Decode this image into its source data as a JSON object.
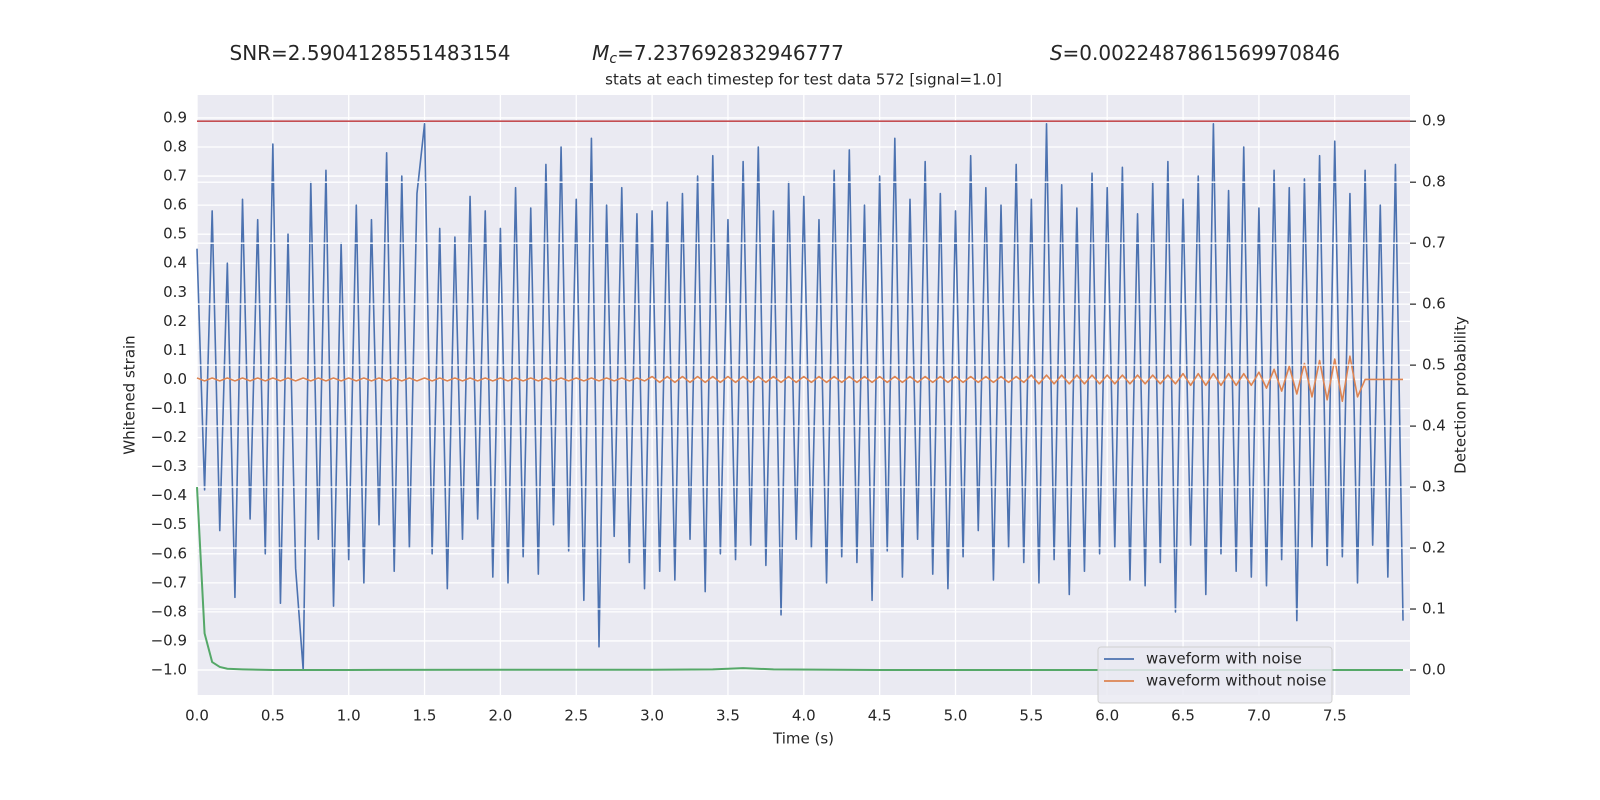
{
  "chart_data": {
    "type": "line",
    "annotations": [
      {
        "text": "SNR=2.5904128551483154"
      },
      {
        "symbol": "M",
        "subscript": "c",
        "text": "=7.237692832946777"
      },
      {
        "symbol": "S",
        "text": "=0.0022487861569970846"
      }
    ],
    "title": "stats at each timestep for test data 572 [signal=1.0]",
    "x_label": "Time (s)",
    "y_label": "Whitened strain",
    "y2_label": "Detection probability",
    "xlim": [
      0,
      7.996
    ],
    "ylim": [
      -1.086,
      0.979
    ],
    "y2lim": [
      -0.041,
      0.943
    ],
    "xticks": [
      {
        "value": 0,
        "label": "0.0"
      },
      0.5,
      {
        "value": 1,
        "label": "1.0"
      },
      1.5,
      {
        "value": 2,
        "label": "2.0"
      },
      2.5,
      {
        "value": 3,
        "label": "3.0"
      },
      3.5,
      {
        "value": 4,
        "label": "4.0"
      },
      4.5,
      {
        "value": 5,
        "label": "5.0"
      },
      5.5,
      {
        "value": 6,
        "label": "6.0"
      },
      6.5,
      {
        "value": 7,
        "label": "7.0"
      },
      7.5
    ],
    "yticks": [
      {
        "value": -1,
        "label": "−1.0"
      },
      {
        "value": -0.9,
        "label": "−0.9"
      },
      {
        "value": -0.8,
        "label": "−0.8"
      },
      {
        "value": -0.7,
        "label": "−0.7"
      },
      {
        "value": -0.6,
        "label": "−0.6"
      },
      {
        "value": -0.5,
        "label": "−0.5"
      },
      {
        "value": -0.4,
        "label": "−0.4"
      },
      {
        "value": -0.3,
        "label": "−0.3"
      },
      {
        "value": -0.2,
        "label": "−0.2"
      },
      {
        "value": -0.1,
        "label": "−0.1"
      },
      {
        "value": 0,
        "label": "0.0"
      },
      0.1,
      0.2,
      0.3,
      0.4,
      0.5,
      0.6,
      0.7,
      0.8,
      0.9
    ],
    "y2ticks": [
      {
        "value": 0,
        "label": "0.0"
      },
      0.1,
      0.2,
      0.3,
      0.4,
      0.5,
      0.6,
      0.7,
      0.8,
      0.9
    ],
    "grid": true,
    "legend": "lower right",
    "hline": {
      "value": 0.9,
      "axis": "y2",
      "color": "#c44e52"
    },
    "x": [
      0,
      0.05,
      0.1,
      0.15,
      0.2,
      0.25,
      0.3,
      0.35,
      0.4,
      0.45,
      0.5,
      0.55,
      0.6,
      0.65,
      0.7,
      0.75,
      0.8,
      0.85,
      0.9,
      0.95,
      1,
      1.05,
      1.1,
      1.15,
      1.2,
      1.25,
      1.3,
      1.35,
      1.4,
      1.45,
      1.5,
      1.55,
      1.6,
      1.65,
      1.7,
      1.75,
      1.8,
      1.85,
      1.9,
      1.95,
      2,
      2.05,
      2.1,
      2.15,
      2.2,
      2.25,
      2.3,
      2.35,
      2.4,
      2.45,
      2.5,
      2.55,
      2.6,
      2.65,
      2.7,
      2.75,
      2.8,
      2.85,
      2.9,
      2.95,
      3,
      3.05,
      3.1,
      3.15,
      3.2,
      3.25,
      3.3,
      3.35,
      3.4,
      3.45,
      3.5,
      3.55,
      3.6,
      3.65,
      3.7,
      3.75,
      3.8,
      3.85,
      3.9,
      3.95,
      4,
      4.05,
      4.1,
      4.15,
      4.2,
      4.25,
      4.3,
      4.35,
      4.4,
      4.45,
      4.5,
      4.55,
      4.6,
      4.65,
      4.7,
      4.75,
      4.8,
      4.85,
      4.9,
      4.95,
      5,
      5.05,
      5.1,
      5.15,
      5.2,
      5.25,
      5.3,
      5.35,
      5.4,
      5.45,
      5.5,
      5.55,
      5.6,
      5.65,
      5.7,
      5.75,
      5.8,
      5.85,
      5.9,
      5.95,
      6,
      6.05,
      6.1,
      6.15,
      6.2,
      6.25,
      6.3,
      6.35,
      6.4,
      6.45,
      6.5,
      6.55,
      6.6,
      6.65,
      6.7,
      6.75,
      6.8,
      6.85,
      6.9,
      6.95,
      7,
      7.05,
      7.1,
      7.15,
      7.2,
      7.25,
      7.3,
      7.35,
      7.4,
      7.45,
      7.5,
      7.55,
      7.6,
      7.65,
      7.7,
      7.75,
      7.8,
      7.85,
      7.9,
      7.95
    ],
    "series": [
      {
        "name": "waveform with noise",
        "color": "#4c72b0",
        "values": [
          0.45,
          -0.38,
          0.58,
          -0.52,
          0.4,
          -0.75,
          0.62,
          -0.48,
          0.55,
          -0.6,
          0.81,
          -0.77,
          0.5,
          -0.65,
          -1.0,
          0.68,
          -0.55,
          0.72,
          -0.78,
          0.47,
          -0.62,
          0.6,
          -0.7,
          0.55,
          -0.5,
          0.78,
          -0.66,
          0.7,
          -0.58,
          0.64,
          0.88,
          -0.6,
          0.52,
          -0.72,
          0.49,
          -0.55,
          0.63,
          -0.48,
          0.58,
          -0.68,
          0.52,
          -0.7,
          0.66,
          -0.61,
          0.59,
          -0.67,
          0.74,
          -0.5,
          0.8,
          -0.59,
          0.62,
          -0.76,
          0.83,
          -0.92,
          0.6,
          -0.54,
          0.66,
          -0.63,
          0.57,
          -0.72,
          0.58,
          -0.66,
          0.61,
          -0.69,
          0.64,
          -0.55,
          0.7,
          -0.73,
          0.77,
          -0.6,
          0.55,
          -0.62,
          0.75,
          -0.57,
          0.8,
          -0.64,
          0.58,
          -0.81,
          0.68,
          -0.55,
          0.63,
          -0.58,
          0.55,
          -0.7,
          0.72,
          -0.61,
          0.79,
          -0.63,
          0.6,
          -0.76,
          0.7,
          -0.59,
          0.83,
          -0.68,
          0.62,
          -0.55,
          0.75,
          -0.67,
          0.64,
          -0.72,
          0.58,
          -0.61,
          0.77,
          -0.52,
          0.66,
          -0.69,
          0.6,
          -0.58,
          0.74,
          -0.63,
          0.62,
          -0.7,
          0.88,
          -0.62,
          0.67,
          -0.74,
          0.59,
          -0.66,
          0.71,
          -0.6,
          0.66,
          -0.58,
          0.73,
          -0.69,
          0.57,
          -0.71,
          0.68,
          -0.63,
          0.75,
          -0.8,
          0.62,
          -0.57,
          0.7,
          -0.74,
          0.88,
          -0.6,
          0.65,
          -0.66,
          0.8,
          -0.68,
          0.59,
          -0.71,
          0.72,
          -0.62,
          0.66,
          -0.83,
          0.69,
          -0.58,
          0.77,
          -0.64,
          0.82,
          -0.61,
          0.64,
          -0.7,
          0.72,
          -0.57,
          0.6,
          -0.68,
          0.74,
          -0.83
        ]
      },
      {
        "name": "waveform without noise",
        "color": "#dd8452",
        "values": [
          0.005,
          -0.005,
          0.005,
          -0.005,
          0.005,
          -0.005,
          0.005,
          -0.005,
          0.005,
          -0.005,
          0.005,
          -0.005,
          0.005,
          -0.005,
          0.005,
          -0.005,
          0.005,
          -0.005,
          0.005,
          -0.005,
          0.005,
          -0.005,
          0.005,
          -0.005,
          0.005,
          -0.005,
          0.005,
          -0.005,
          0.005,
          -0.005,
          0.005,
          -0.005,
          0.005,
          -0.005,
          0.005,
          -0.005,
          0.005,
          -0.005,
          0.005,
          -0.005,
          0.005,
          -0.005,
          0.005,
          -0.005,
          0.005,
          -0.005,
          0.005,
          -0.005,
          0.005,
          -0.005,
          0.005,
          -0.005,
          0.005,
          -0.005,
          0.005,
          -0.005,
          0.005,
          -0.005,
          0.005,
          -0.005,
          0.01,
          -0.01,
          0.01,
          -0.01,
          0.01,
          -0.01,
          0.01,
          -0.01,
          0.01,
          -0.01,
          0.01,
          -0.01,
          0.01,
          -0.01,
          0.01,
          -0.01,
          0.01,
          -0.01,
          0.01,
          -0.01,
          0.01,
          -0.01,
          0.01,
          -0.01,
          0.01,
          -0.01,
          0.01,
          -0.01,
          0.01,
          -0.01,
          0.01,
          -0.01,
          0.01,
          -0.01,
          0.01,
          -0.01,
          0.01,
          -0.01,
          0.01,
          -0.01,
          0.01,
          -0.01,
          0.01,
          -0.01,
          0.01,
          -0.01,
          0.01,
          -0.01,
          0.01,
          -0.01,
          0.015,
          -0.015,
          0.015,
          -0.015,
          0.015,
          -0.015,
          0.015,
          -0.015,
          0.015,
          -0.015,
          0.015,
          -0.015,
          0.015,
          -0.015,
          0.015,
          -0.015,
          0.015,
          -0.015,
          0.015,
          -0.015,
          0.02,
          -0.02,
          0.02,
          -0.02,
          0.02,
          -0.02,
          0.02,
          -0.02,
          0.02,
          -0.02,
          0.025,
          -0.03,
          0.035,
          -0.04,
          0.045,
          -0.05,
          0.055,
          -0.06,
          0.065,
          -0.07,
          0.07,
          -0.075,
          0.08,
          -0.06,
          0,
          0,
          0,
          0,
          0,
          0
        ]
      },
      {
        "color": "#55a868",
        "axis": "y2",
        "x": [
          0,
          0.05,
          0.1,
          0.15,
          0.2,
          0.3,
          0.5,
          1,
          2,
          3,
          3.4,
          3.6,
          3.8,
          4.5,
          6,
          7,
          7.95
        ],
        "values": [
          0.3,
          0.06,
          0.013,
          0.005,
          0.002,
          0.001,
          0,
          0,
          0.0005,
          0.0005,
          0.001,
          0.003,
          0.001,
          0,
          0,
          0,
          0
        ]
      }
    ]
  }
}
